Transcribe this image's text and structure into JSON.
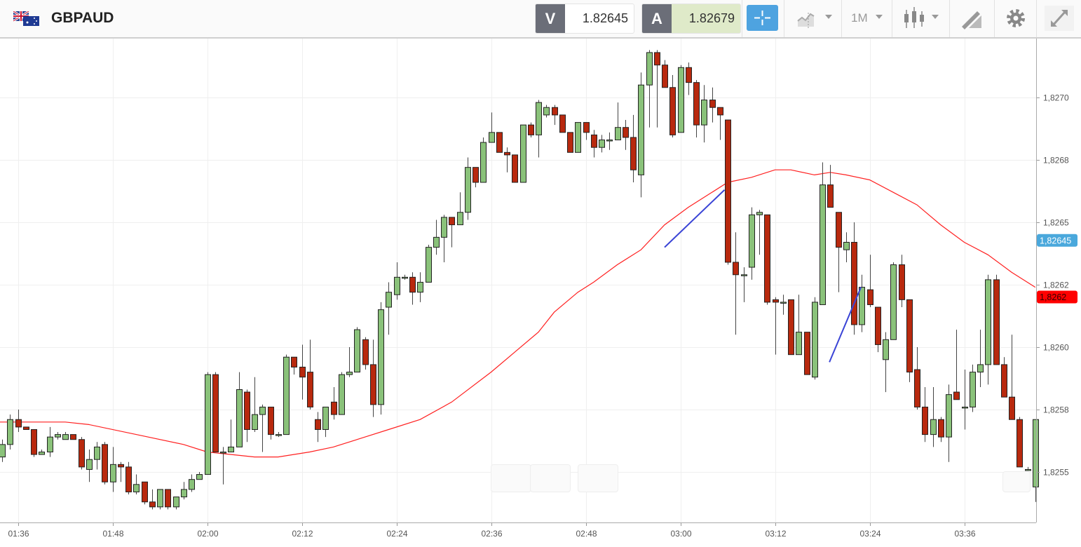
{
  "header": {
    "symbol": "GBPAUD",
    "bid_label": "V",
    "bid_value": "1.82645",
    "ask_label": "A",
    "ask_value": "1.82679",
    "timeframe": "1M",
    "icons": [
      "gb-au-flag-icon",
      "crosshair-icon",
      "chart-type-icon",
      "candlestick-icon",
      "drawing-tools-icon",
      "gear-icon",
      "expand-icon"
    ]
  },
  "colors": {
    "up": "#8ac27a",
    "down": "#b8290e",
    "ma": "#ff2020",
    "drawing": "#3a44d6",
    "bid_tag": "#4aa8dc",
    "ma_tag": "#ff0000",
    "ask_bg": "#dfeac9"
  },
  "chart_data": {
    "type": "candlestick",
    "title": "GBPAUD",
    "interval": "1M",
    "start_time": "01:34",
    "ylim": [
      1.82532,
      1.82728
    ],
    "y_ticks": [
      {
        "value": 1.827,
        "label": "1,8270"
      },
      {
        "value": 1.82675,
        "label": "1,8268"
      },
      {
        "value": 1.8265,
        "label": "1,8265"
      },
      {
        "value": 1.82625,
        "label": "1,8262"
      },
      {
        "value": 1.826,
        "label": "1,8260"
      },
      {
        "value": 1.82575,
        "label": "1,8258"
      },
      {
        "value": 1.8255,
        "label": "1,8255"
      }
    ],
    "x_ticks": [
      {
        "index": 2,
        "label": "01:36"
      },
      {
        "index": 14,
        "label": "01:48"
      },
      {
        "index": 26,
        "label": "02:00"
      },
      {
        "index": 38,
        "label": "02:12"
      },
      {
        "index": 50,
        "label": "02:24"
      },
      {
        "index": 62,
        "label": "02:36"
      },
      {
        "index": 74,
        "label": "02:48"
      },
      {
        "index": 86,
        "label": "03:00"
      },
      {
        "index": 98,
        "label": "03:12"
      },
      {
        "index": 110,
        "label": "03:24"
      },
      {
        "index": 122,
        "label": "03:36"
      }
    ],
    "ohlc_fields": [
      "open",
      "high",
      "low",
      "close"
    ],
    "candles": [
      [
        1.82556,
        1.82563,
        1.82554,
        1.82561
      ],
      [
        1.82561,
        1.82573,
        1.82559,
        1.82571
      ],
      [
        1.82571,
        1.82575,
        1.82566,
        1.82568
      ],
      [
        1.82568,
        1.82568,
        1.82567,
        1.82567
      ],
      [
        1.82567,
        1.82567,
        1.82556,
        1.82557
      ],
      [
        1.82557,
        1.82559,
        1.82557,
        1.82558
      ],
      [
        1.82558,
        1.82568,
        1.82556,
        1.82564
      ],
      [
        1.82564,
        1.82566,
        1.82563,
        1.82565
      ],
      [
        1.82563,
        1.82566,
        1.82563,
        1.82565
      ],
      [
        1.82565,
        1.82565,
        1.82563,
        1.82563
      ],
      [
        1.82563,
        1.82564,
        1.82551,
        1.82552
      ],
      [
        1.82551,
        1.82559,
        1.82546,
        1.82555
      ],
      [
        1.82555,
        1.82562,
        1.82551,
        1.8256
      ],
      [
        1.82561,
        1.82562,
        1.82545,
        1.82546
      ],
      [
        1.82546,
        1.8256,
        1.82542,
        1.82553
      ],
      [
        1.82553,
        1.82554,
        1.82546,
        1.82552
      ],
      [
        1.82552,
        1.82554,
        1.82541,
        1.82542
      ],
      [
        1.82542,
        1.82549,
        1.82541,
        1.82545
      ],
      [
        1.82546,
        1.82546,
        1.82537,
        1.82538
      ],
      [
        1.82538,
        1.82543,
        1.82535,
        1.82536
      ],
      [
        1.82536,
        1.82543,
        1.82535,
        1.82543
      ],
      [
        1.82543,
        1.82543,
        1.82535,
        1.82536
      ],
      [
        1.82536,
        1.8254,
        1.82535,
        1.8254
      ],
      [
        1.8254,
        1.82546,
        1.82539,
        1.82543
      ],
      [
        1.82543,
        1.82549,
        1.82542,
        1.82547
      ],
      [
        1.82547,
        1.8255,
        1.82547,
        1.82549
      ],
      [
        1.82549,
        1.8259,
        1.82549,
        1.82589
      ],
      [
        1.82589,
        1.8259,
        1.82558,
        1.82558
      ],
      [
        1.82558,
        1.8256,
        1.82545,
        1.82558
      ],
      [
        1.82558,
        1.82571,
        1.82558,
        1.8256
      ],
      [
        1.8256,
        1.8259,
        1.8256,
        1.82583
      ],
      [
        1.82582,
        1.82583,
        1.82562,
        1.82567
      ],
      [
        1.82567,
        1.82588,
        1.82566,
        1.82573
      ],
      [
        1.82573,
        1.82577,
        1.82558,
        1.82576
      ],
      [
        1.82576,
        1.82576,
        1.82563,
        1.82565
      ],
      [
        1.82565,
        1.82566,
        1.82564,
        1.82565
      ],
      [
        1.82565,
        1.82597,
        1.82565,
        1.82596
      ],
      [
        1.82596,
        1.82596,
        1.82589,
        1.82592
      ],
      [
        1.82592,
        1.82601,
        1.82579,
        1.82588
      ],
      [
        1.8259,
        1.82603,
        1.82575,
        1.82576
      ],
      [
        1.82571,
        1.82574,
        1.82562,
        1.82567
      ],
      [
        1.82567,
        1.82576,
        1.82564,
        1.82576
      ],
      [
        1.82578,
        1.82584,
        1.82571,
        1.82573
      ],
      [
        1.82573,
        1.8259,
        1.82573,
        1.82589
      ],
      [
        1.82589,
        1.826,
        1.82588,
        1.8259
      ],
      [
        1.8259,
        1.82608,
        1.8259,
        1.82607
      ],
      [
        1.82603,
        1.82604,
        1.82591,
        1.82593
      ],
      [
        1.82593,
        1.82603,
        1.82572,
        1.82577
      ],
      [
        1.82577,
        1.82618,
        1.82573,
        1.82615
      ],
      [
        1.82616,
        1.82626,
        1.82605,
        1.82622
      ],
      [
        1.82621,
        1.82634,
        1.82619,
        1.82628
      ],
      [
        1.82628,
        1.82629,
        1.82627,
        1.82628
      ],
      [
        1.82628,
        1.8263,
        1.82617,
        1.82622
      ],
      [
        1.82622,
        1.8263,
        1.82618,
        1.82626
      ],
      [
        1.82626,
        1.82641,
        1.82626,
        1.8264
      ],
      [
        1.8264,
        1.82651,
        1.82637,
        1.82644
      ],
      [
        1.82644,
        1.82653,
        1.82634,
        1.82652
      ],
      [
        1.82652,
        1.82652,
        1.8264,
        1.82649
      ],
      [
        1.82649,
        1.82662,
        1.82649,
        1.82654
      ],
      [
        1.82654,
        1.82676,
        1.82651,
        1.82672
      ],
      [
        1.82672,
        1.82672,
        1.82664,
        1.82666
      ],
      [
        1.82666,
        1.82684,
        1.82666,
        1.82682
      ],
      [
        1.82682,
        1.82694,
        1.82682,
        1.82686
      ],
      [
        1.82686,
        1.82686,
        1.82678,
        1.82678
      ],
      [
        1.82678,
        1.8268,
        1.8267,
        1.82677
      ],
      [
        1.82677,
        1.82677,
        1.82666,
        1.82666
      ],
      [
        1.82666,
        1.82689,
        1.82666,
        1.82689
      ],
      [
        1.82689,
        1.8269,
        1.82684,
        1.82685
      ],
      [
        1.82685,
        1.82699,
        1.82676,
        1.82698
      ],
      [
        1.82693,
        1.82697,
        1.82692,
        1.82696
      ],
      [
        1.82696,
        1.82697,
        1.82689,
        1.82693
      ],
      [
        1.82693,
        1.82693,
        1.82686,
        1.82686
      ],
      [
        1.82686,
        1.82686,
        1.82678,
        1.82678
      ],
      [
        1.82678,
        1.8269,
        1.82678,
        1.8269
      ],
      [
        1.8269,
        1.8269,
        1.82683,
        1.82686
      ],
      [
        1.82685,
        1.82687,
        1.82676,
        1.8268
      ],
      [
        1.8268,
        1.82685,
        1.82678,
        1.82683
      ],
      [
        1.82683,
        1.82686,
        1.82679,
        1.82683
      ],
      [
        1.82683,
        1.82698,
        1.82683,
        1.82688
      ],
      [
        1.82688,
        1.82691,
        1.82679,
        1.82684
      ],
      [
        1.82684,
        1.82693,
        1.82666,
        1.82671
      ],
      [
        1.82669,
        1.8271,
        1.8266,
        1.82705
      ],
      [
        1.82705,
        1.82719,
        1.82688,
        1.82718
      ],
      [
        1.82718,
        1.82719,
        1.82688,
        1.82713
      ],
      [
        1.82713,
        1.82715,
        1.82704,
        1.82704
      ],
      [
        1.82704,
        1.82709,
        1.82684,
        1.82685
      ],
      [
        1.82686,
        1.82713,
        1.82686,
        1.82712
      ],
      [
        1.82712,
        1.82714,
        1.82701,
        1.82706
      ],
      [
        1.82706,
        1.82707,
        1.82684,
        1.82689
      ],
      [
        1.82689,
        1.82705,
        1.82682,
        1.82699
      ],
      [
        1.82699,
        1.82704,
        1.8269,
        1.82696
      ],
      [
        1.82696,
        1.82696,
        1.82683,
        1.82693
      ],
      [
        1.82691,
        1.82691,
        1.82633,
        1.82634
      ],
      [
        1.82634,
        1.82646,
        1.82605,
        1.82629
      ],
      [
        1.82629,
        1.82632,
        1.82618,
        1.82629
      ],
      [
        1.82632,
        1.82656,
        1.82627,
        1.82653
      ],
      [
        1.82653,
        1.82655,
        1.82637,
        1.82654
      ],
      [
        1.82653,
        1.82653,
        1.82617,
        1.82618
      ],
      [
        1.82619,
        1.8262,
        1.82597,
        1.82618
      ],
      [
        1.82618,
        1.82621,
        1.82613,
        1.82618
      ],
      [
        1.82619,
        1.82619,
        1.82597,
        1.82597
      ],
      [
        1.82597,
        1.82621,
        1.82597,
        1.82606
      ],
      [
        1.82606,
        1.82606,
        1.82589,
        1.82589
      ],
      [
        1.82588,
        1.8262,
        1.82587,
        1.82618
      ],
      [
        1.82617,
        1.82674,
        1.82617,
        1.82665
      ],
      [
        1.82665,
        1.82673,
        1.82656,
        1.82656
      ],
      [
        1.82654,
        1.82654,
        1.82622,
        1.8264
      ],
      [
        1.82639,
        1.82646,
        1.82634,
        1.82642
      ],
      [
        1.82642,
        1.8265,
        1.82605,
        1.82609
      ],
      [
        1.82609,
        1.82629,
        1.82606,
        1.82624
      ],
      [
        1.82623,
        1.82637,
        1.82616,
        1.82617
      ],
      [
        1.82616,
        1.82616,
        1.82598,
        1.82601
      ],
      [
        1.82595,
        1.82606,
        1.82582,
        1.82603
      ],
      [
        1.82603,
        1.82634,
        1.82603,
        1.82633
      ],
      [
        1.82633,
        1.82637,
        1.82616,
        1.82619
      ],
      [
        1.82619,
        1.82619,
        1.82586,
        1.8259
      ],
      [
        1.82591,
        1.826,
        1.82575,
        1.82576
      ],
      [
        1.82576,
        1.82584,
        1.82562,
        1.82565
      ],
      [
        1.82565,
        1.82584,
        1.8256,
        1.82571
      ],
      [
        1.82571,
        1.82572,
        1.82562,
        1.82564
      ],
      [
        1.82564,
        1.82585,
        1.82554,
        1.82581
      ],
      [
        1.82582,
        1.82607,
        1.82579,
        1.82579
      ],
      [
        1.82576,
        1.82591,
        1.82567,
        1.82576
      ],
      [
        1.82576,
        1.82593,
        1.82574,
        1.8259
      ],
      [
        1.8259,
        1.82607,
        1.82584,
        1.82593
      ],
      [
        1.82593,
        1.82629,
        1.82585,
        1.82627
      ],
      [
        1.82627,
        1.82629,
        1.82593,
        1.82593
      ],
      [
        1.82593,
        1.82596,
        1.8258,
        1.8258
      ],
      [
        1.8258,
        1.82605,
        1.82571,
        1.82571
      ],
      [
        1.82571,
        1.82572,
        1.82552,
        1.82552
      ],
      [
        1.82551,
        1.82552,
        1.82551,
        1.82551
      ],
      [
        1.82544,
        1.82571,
        1.82538,
        1.82571
      ]
    ],
    "moving_average": {
      "points": [
        [
          0,
          1.8257
        ],
        [
          8,
          1.8257
        ],
        [
          11,
          1.82569
        ],
        [
          17,
          1.82565
        ],
        [
          23,
          1.82561
        ],
        [
          26,
          1.82558
        ],
        [
          32,
          1.82556
        ],
        [
          35,
          1.82556
        ],
        [
          39,
          1.82558
        ],
        [
          42,
          1.8256
        ],
        [
          46,
          1.82564
        ],
        [
          49,
          1.82567
        ],
        [
          53,
          1.82571
        ],
        [
          57,
          1.82578
        ],
        [
          62,
          1.8259
        ],
        [
          65,
          1.82598
        ],
        [
          68,
          1.82606
        ],
        [
          70,
          1.82614
        ],
        [
          73,
          1.82622
        ],
        [
          75,
          1.82626
        ],
        [
          78,
          1.82633
        ],
        [
          81,
          1.82639
        ],
        [
          84,
          1.82649
        ],
        [
          87,
          1.82656
        ],
        [
          90,
          1.82662
        ],
        [
          92,
          1.82666
        ],
        [
          95,
          1.82668
        ],
        [
          98,
          1.82671
        ],
        [
          100,
          1.82671
        ],
        [
          103,
          1.82669
        ],
        [
          105,
          1.8267
        ],
        [
          107,
          1.82669
        ],
        [
          110,
          1.82667
        ],
        [
          113,
          1.82662
        ],
        [
          116,
          1.82657
        ],
        [
          119,
          1.82649
        ],
        [
          122,
          1.82642
        ],
        [
          125,
          1.82637
        ],
        [
          128,
          1.8263
        ],
        [
          131,
          1.82624
        ]
      ],
      "last_label": "1,8262"
    },
    "drawings": [
      {
        "from": [
          84.0,
          1.8264
        ],
        "to": [
          91.6,
          1.82663
        ]
      },
      {
        "from": [
          104.9,
          1.82594
        ],
        "to": [
          108.9,
          1.82624
        ]
      }
    ],
    "current_price": {
      "value": 1.82645,
      "label": "1,82645"
    }
  }
}
